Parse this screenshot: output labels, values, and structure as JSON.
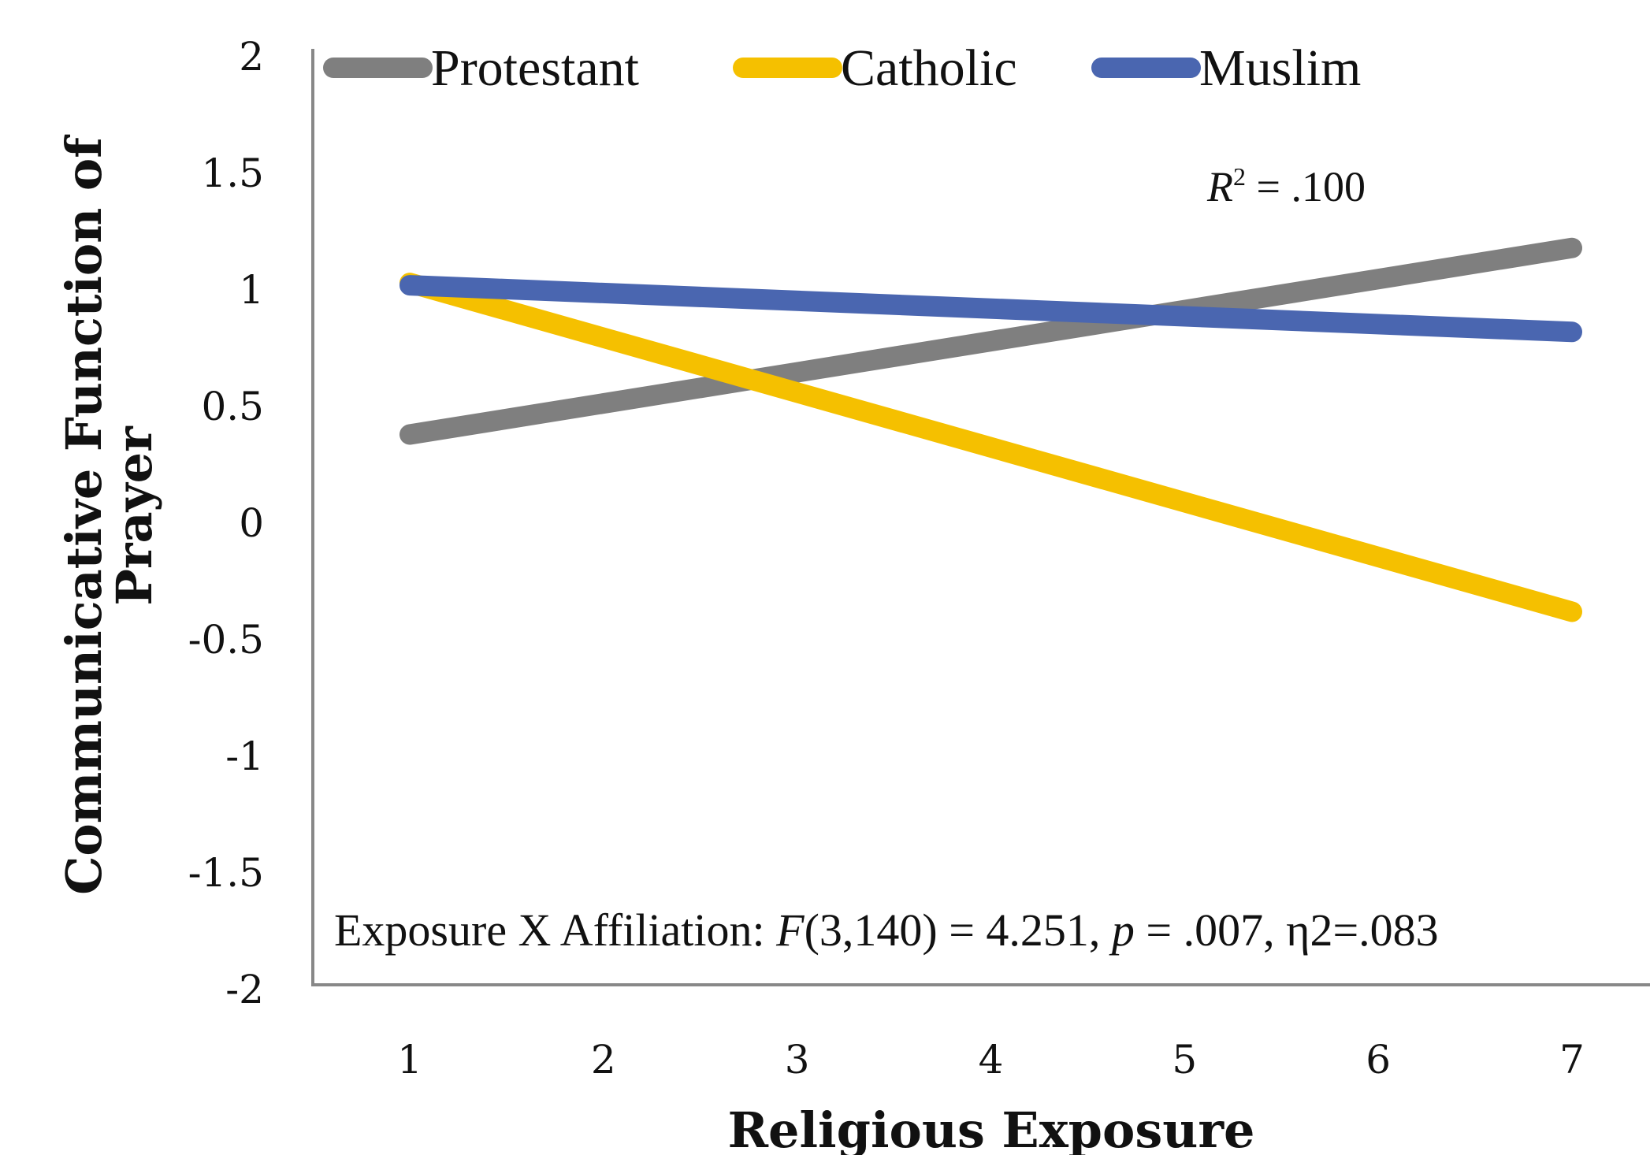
{
  "chart_data": {
    "type": "line",
    "xlabel": "Religious Exposure",
    "ylabel_line1": "Communicative Function of",
    "ylabel_line2": "Prayer",
    "x_ticks": [
      "1",
      "2",
      "3",
      "4",
      "5",
      "6",
      "7"
    ],
    "y_ticks": [
      "2",
      "1.5",
      "1",
      "0.5",
      "0",
      "-0.5",
      "-1",
      "-1.5",
      "-2"
    ],
    "xlim": [
      1,
      7
    ],
    "ylim": [
      -2,
      2
    ],
    "grid": false,
    "legend_position": "top",
    "series": [
      {
        "name": "Protestant",
        "color": "#7f7f7f",
        "x": [
          1,
          7
        ],
        "y": [
          0.38,
          1.18
        ]
      },
      {
        "name": "Catholic",
        "color": "#f5c000",
        "x": [
          1,
          7
        ],
        "y": [
          1.03,
          -0.38
        ]
      },
      {
        "name": "Muslim",
        "color": "#4a66b0",
        "x": [
          1,
          7
        ],
        "y": [
          1.02,
          0.82
        ]
      }
    ],
    "r_squared": {
      "symbol": "R",
      "exponent": "2",
      "value_text": " = .100"
    },
    "stats_annotation": {
      "prefix": "Exposure X Affiliation: ",
      "f_symbol": "F",
      "f_value": "(3,140) = 4.251, ",
      "p_symbol": "p",
      "p_value": " = .007, η2=.083"
    }
  }
}
